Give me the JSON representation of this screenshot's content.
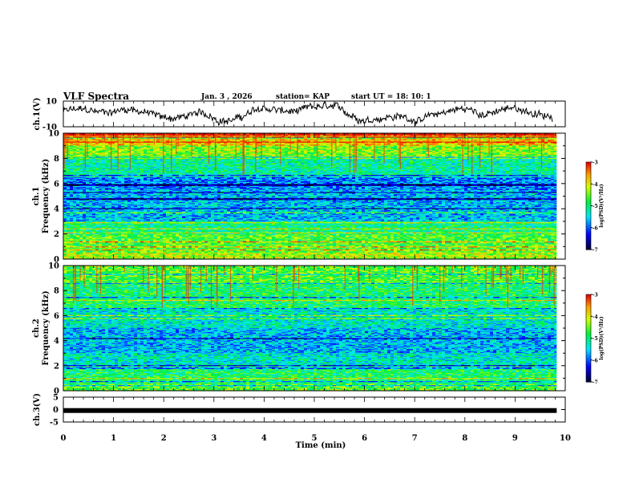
{
  "header": {
    "title": "VLF Spectra",
    "date": "Jan. 3 , 2026",
    "station": "station= KAP",
    "start": "start UT = 18: 10: 1"
  },
  "colors": {
    "trace": "#000000",
    "cmap": [
      "#000000",
      "#0000ff",
      "#00ffff",
      "#00ff00",
      "#ffff00",
      "#ff0000",
      "#ffffff"
    ]
  },
  "chart_data": [
    {
      "type": "line",
      "name": "ch1-waveform",
      "ylabel": "ch.1(V)",
      "ylim": [
        -10,
        10
      ],
      "y_ticklabels": [
        "10",
        "-10"
      ],
      "xlim": [
        0,
        10
      ],
      "description_values": "noisy voltage trace roughly between -8 and 8 V"
    },
    {
      "type": "heatmap",
      "name": "ch1-spectrogram",
      "ylabel": "ch.1\nFrequency (kHz)",
      "ylim": [
        0,
        10
      ],
      "y_ticks": [
        0,
        2,
        4,
        6,
        8,
        10
      ],
      "xlim": [
        0,
        9.83
      ],
      "colorbar": {
        "label": "log(PSD)(V²/Hz)",
        "range": [
          -7,
          -3
        ],
        "ticks": [
          -3,
          -4,
          -5,
          -6,
          -7
        ]
      },
      "bands_khz": [
        {
          "f0": 0.0,
          "f1": 0.5,
          "level": -4.2
        },
        {
          "f0": 0.5,
          "f1": 2.0,
          "level": -4.6
        },
        {
          "f0": 2.0,
          "f1": 3.0,
          "level": -5.0
        },
        {
          "f0": 3.0,
          "f1": 5.5,
          "level": -5.6
        },
        {
          "f0": 5.5,
          "f1": 6.5,
          "level": -5.8
        },
        {
          "f0": 6.5,
          "f1": 8.0,
          "level": -5.1
        },
        {
          "f0": 8.0,
          "f1": 9.0,
          "level": -4.4
        },
        {
          "f0": 9.0,
          "f1": 10.0,
          "level": -3.8
        }
      ]
    },
    {
      "type": "heatmap",
      "name": "ch2-spectrogram",
      "ylabel": "ch.2\nFrequency (kHz)",
      "ylim": [
        0,
        10
      ],
      "y_ticks": [
        0,
        2,
        4,
        6,
        8,
        10
      ],
      "xlim": [
        0,
        9.83
      ],
      "colorbar": {
        "label": "log(PSD)(V²/Hz)",
        "range": [
          -7,
          -3
        ],
        "ticks": [
          -3,
          -4,
          -5,
          -6,
          -7
        ]
      },
      "bands_khz": [
        {
          "f0": 0.0,
          "f1": 0.5,
          "level": -4.6
        },
        {
          "f0": 0.5,
          "f1": 2.0,
          "level": -4.9
        },
        {
          "f0": 2.0,
          "f1": 3.0,
          "level": -5.3
        },
        {
          "f0": 3.0,
          "f1": 5.0,
          "level": -5.6
        },
        {
          "f0": 5.0,
          "f1": 6.5,
          "level": -5.3
        },
        {
          "f0": 6.5,
          "f1": 8.5,
          "level": -4.9
        },
        {
          "f0": 8.5,
          "f1": 10.0,
          "level": -4.6
        }
      ]
    },
    {
      "type": "line",
      "name": "ch3-waveform",
      "ylabel": "ch.3(V)",
      "ylim": [
        -5,
        5
      ],
      "y_ticklabels": [
        "5",
        "0",
        "-5"
      ],
      "xlim": [
        0,
        10
      ],
      "level": -0.4
    }
  ],
  "x_axis": {
    "label": "Time (min)",
    "ticks": [
      0,
      1,
      2,
      3,
      4,
      5,
      6,
      7,
      8,
      9,
      10
    ],
    "range": [
      0,
      10
    ]
  },
  "cb_ticklabels": [
    "-3",
    "-4",
    "-5",
    "-6",
    "-7"
  ]
}
